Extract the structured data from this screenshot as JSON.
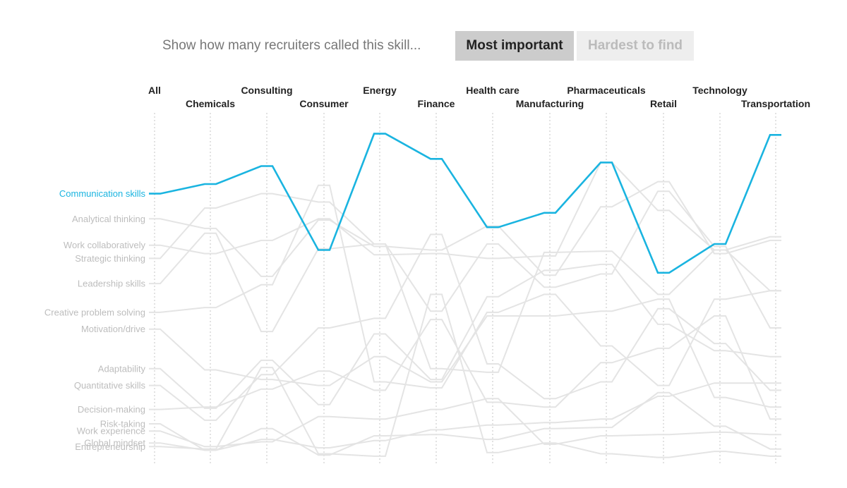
{
  "controls": {
    "prompt": "Show how many recruiters called this skill...",
    "most_important_label": "Most important",
    "hardest_to_find_label": "Hardest to find",
    "selected": "Most important"
  },
  "colors": {
    "highlight": "#1ab4e0",
    "line": "#e4e4e4",
    "label": "#bdbdbd",
    "active_button": "#cccccc",
    "inactive_button": "#eeeeee"
  },
  "chart_data": {
    "type": "slope",
    "industries": [
      "All",
      "Chemicals",
      "Consulting",
      "Consumer",
      "Energy",
      "Finance",
      "Health care",
      "Manufacturing",
      "Pharmaceuticals",
      "Retail",
      "Technology",
      "Transportation"
    ],
    "highlighted": "Communication skills",
    "grid": false,
    "series": [
      {
        "name": "Communication skills",
        "values": [
          22.2,
          23.0,
          24.5,
          17.5,
          27.2,
          25.1,
          19.4,
          20.6,
          24.8,
          15.6,
          18.0,
          27.1
        ]
      },
      {
        "name": "Analytical thinking",
        "values": [
          20.1,
          19.3,
          15.3,
          20.0,
          17.8,
          17.5,
          19.5,
          15.4,
          21.1,
          23.2,
          17.2,
          18.3
        ]
      },
      {
        "name": "Work collaboratively",
        "values": [
          17.9,
          17.2,
          18.3,
          20.1,
          17.1,
          17.2,
          16.8,
          17.0,
          24.8,
          20.8,
          17.5,
          14.1
        ]
      },
      {
        "name": "Strategic thinking",
        "values": [
          16.8,
          21.0,
          22.2,
          21.5,
          18.0,
          7.6,
          7.3,
          17.3,
          17.4,
          13.8,
          17.5,
          18.6
        ]
      },
      {
        "name": "Leadership skills",
        "values": [
          14.7,
          18.9,
          10.7,
          17.6,
          18.0,
          12.4,
          18.0,
          14.4,
          15.5,
          22.4,
          17.8,
          11.0
        ]
      },
      {
        "name": "Creative problem solving",
        "values": [
          12.3,
          12.7,
          14.6,
          22.9,
          6.5,
          6.0,
          12.3,
          13.8,
          9.5,
          6.2,
          13.4,
          14.1
        ]
      },
      {
        "name": "Motivation/drive",
        "values": [
          10.9,
          7.5,
          6.7,
          6.2,
          8.6,
          6.5,
          12.0,
          12.0,
          12.4,
          13.4,
          5.2,
          4.4
        ]
      },
      {
        "name": "Adaptability",
        "values": [
          7.6,
          4.3,
          8.3,
          4.6,
          10.5,
          6.7,
          13.6,
          15.8,
          16.3,
          11.3,
          9.1,
          8.6
        ]
      },
      {
        "name": "Quantitative skills",
        "values": [
          6.2,
          3.3,
          7.1,
          11.0,
          11.8,
          18.8,
          8.0,
          5.1,
          6.5,
          12.6,
          9.7,
          5.8
        ]
      },
      {
        "name": "Decision-making",
        "values": [
          4.2,
          4.4,
          5.9,
          7.4,
          5.8,
          11.7,
          4.8,
          4.4,
          8.1,
          9.3,
          12.0,
          3.4
        ]
      },
      {
        "name": "Risk-taking",
        "values": [
          3.0,
          0.8,
          1.7,
          1.0,
          1.6,
          2.5,
          2.9,
          3.1,
          3.4,
          5.3,
          6.4,
          6.4
        ]
      },
      {
        "name": "Work experience",
        "values": [
          2.4,
          1.1,
          1.5,
          3.6,
          3.4,
          4.2,
          5.1,
          1.3,
          2.0,
          2.1,
          2.3,
          2.1
        ]
      },
      {
        "name": "Global mindset",
        "values": [
          1.4,
          0.8,
          2.6,
          0.4,
          2.0,
          2.1,
          1.7,
          2.6,
          2.7,
          5.6,
          2.8,
          0.9
        ]
      },
      {
        "name": "Entrepreneurship",
        "values": [
          1.1,
          0.9,
          7.7,
          0.5,
          0.3,
          13.8,
          0.6,
          1.4,
          0.5,
          0.2,
          0.7,
          0.3
        ]
      }
    ]
  }
}
